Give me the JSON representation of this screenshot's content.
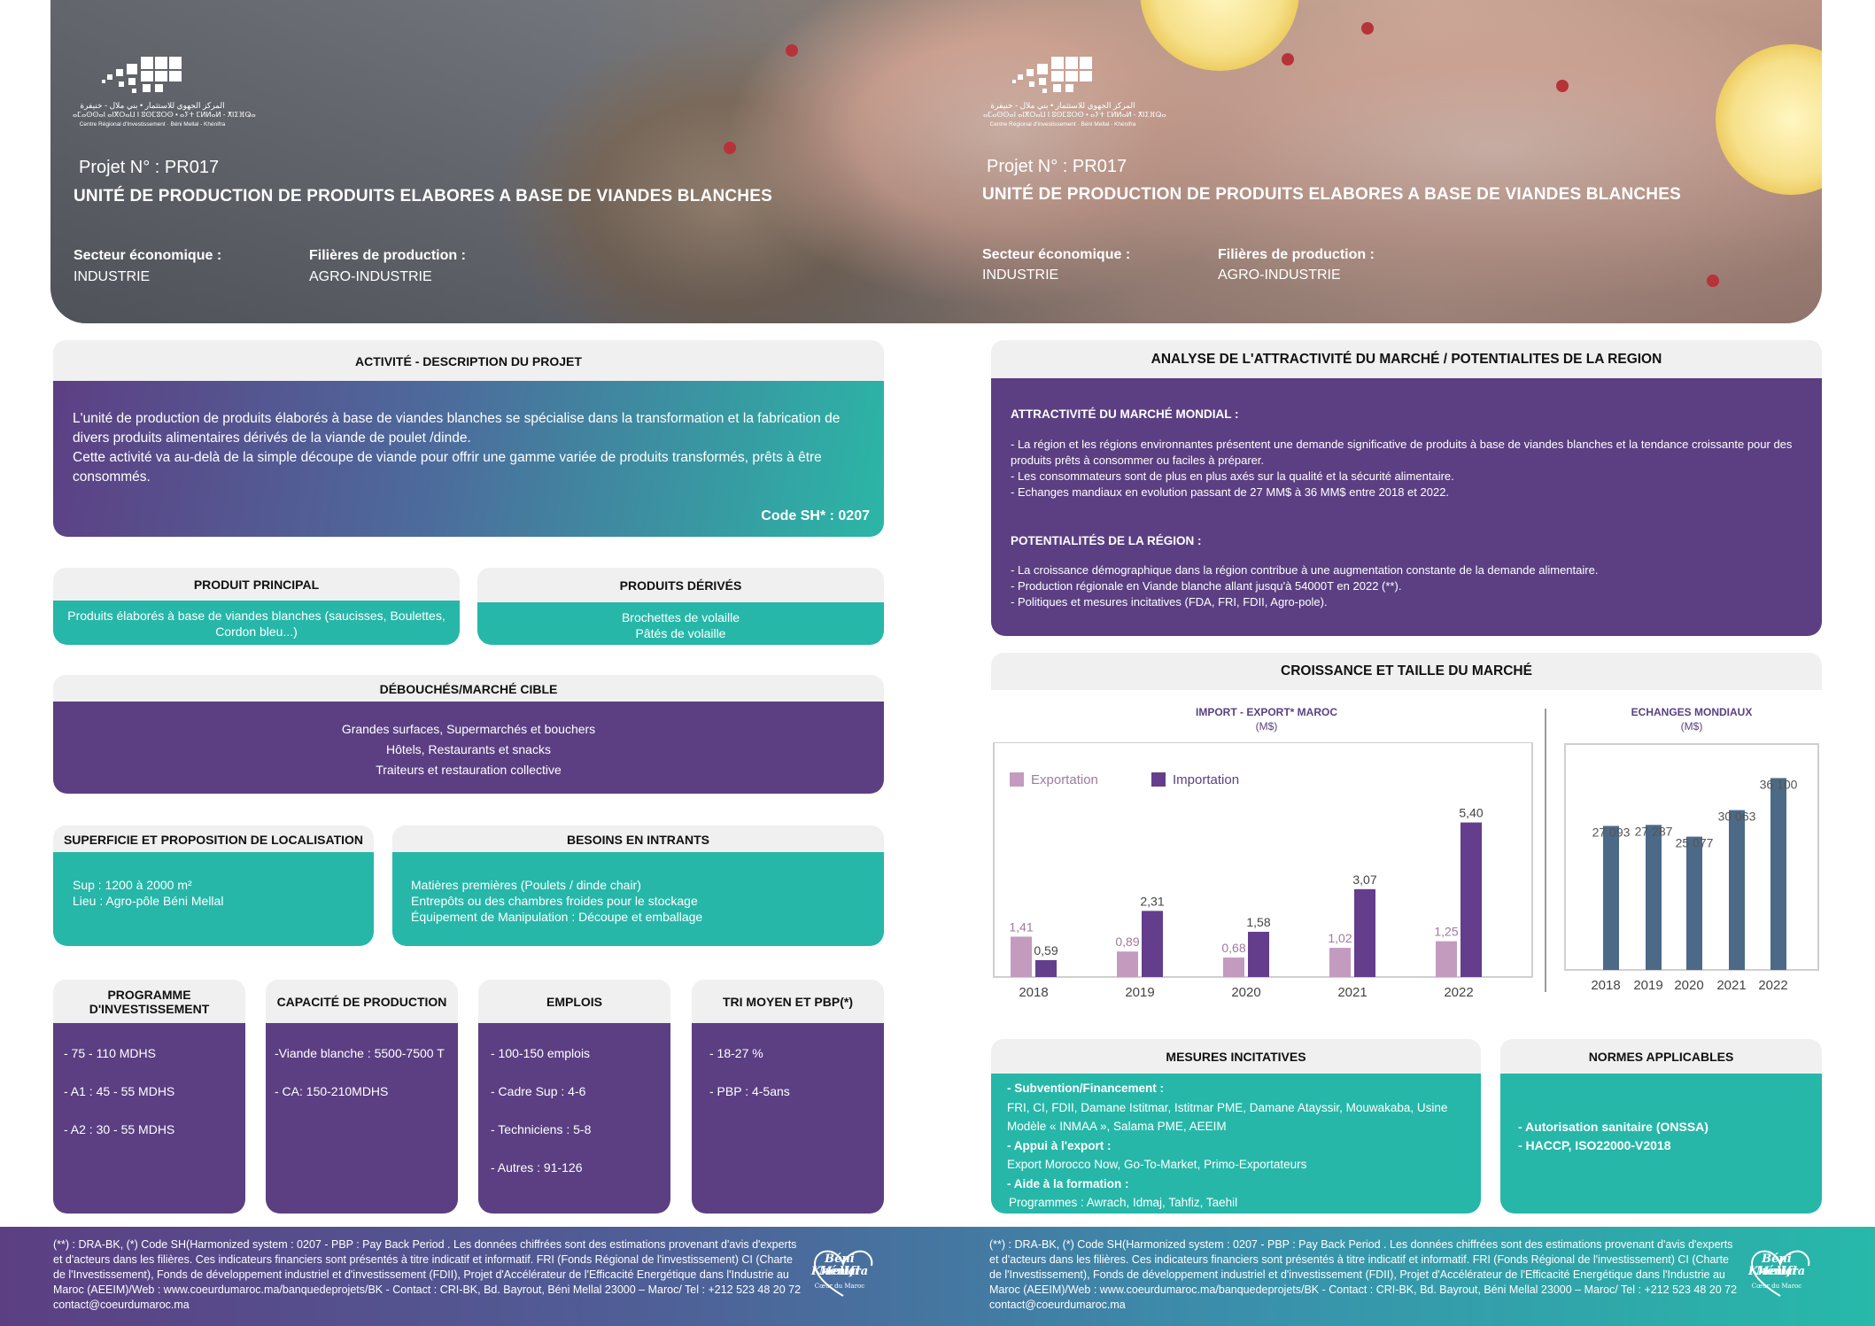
{
  "hero": {
    "logo_text_ar": "المركز الجهوي للاستثمار • بني ملال - خنيفرة",
    "logo_text_tif": "ⴰⵎⴰⵙⵙⴰⵏ ⴰⵏⴳⵔⴰⵡ ⵏ ⵓⵙⵎⵓⵔⵙ • ⴰⵢⵜ ⵎⵍⵍⴰⵍ - ⵅⵏⵉⴼⵕⴰ",
    "logo_text_fr": "Centre Régional d'Investissement · Béni Mellal - Khénifra",
    "project_no": "Projet N° :  PR017",
    "title": "UNITÉ DE PRODUCTION DE PRODUITS ELABORES A BASE DE VIANDES BLANCHES",
    "sector_label": "Secteur économique :",
    "sector_value": "INDUSTRIE",
    "filiere_label": "Filières de production :",
    "filiere_value": "AGRO-INDUSTRIE"
  },
  "activite": {
    "title": "ACTIVITÉ - DESCRIPTION DU PROJET",
    "p1": "L'unité de production de produits élaborés à base de viandes blanches se spécialise dans la transformation et la fabrication de divers produits alimentaires dérivés de la viande de poulet /dinde.",
    "p2": "Cette activité va au-delà de la simple découpe de viande pour offrir une gamme variée de produits transformés, prêts à être consommés.",
    "code": "Code SH* : 0207"
  },
  "produit_principal": {
    "title": "PRODUIT PRINCIPAL",
    "text": "Produits élaborés à base de viandes blanches (saucisses, Boulettes, Cordon bleu...)"
  },
  "produits_derives": {
    "title": "PRODUITS DÉRIVÉS",
    "items": [
      "Brochettes de volaille",
      "Pâtés de volaille"
    ]
  },
  "debouches": {
    "title": "DÉBOUCHÉS/MARCHÉ CIBLE",
    "items": [
      "Grandes surfaces, Supermarchés et bouchers",
      "Hôtels, Restaurants et snacks",
      "Traiteurs et restauration collective"
    ]
  },
  "superficie": {
    "title": "SUPERFICIE ET PROPOSITION DE LOCALISATION",
    "items": [
      "Sup : 1200 à 2000 m²",
      "Lieu : Agro-pôle Béni Mellal"
    ]
  },
  "intrants": {
    "title": "BESOINS EN INTRANTS",
    "items": [
      "Matières premières (Poulets / dinde chair)",
      "Entrepôts ou des chambres froides pour le stockage",
      "Équipement de Manipulation : Découpe et emballage"
    ]
  },
  "programme": {
    "title": "PROGRAMME D'INVESTISSEMENT",
    "items": [
      "- 75 - 110 MDHS",
      "- A1 : 45 - 55 MDHS",
      "- A2 : 30 - 55 MDHS"
    ]
  },
  "capacite": {
    "title": "CAPACITÉ DE PRODUCTION",
    "items": [
      "-Viande blanche : 5500-7500 T",
      "- CA: 150-210MDHS"
    ]
  },
  "emplois": {
    "title": "EMPLOIS",
    "items": [
      "- 100-150 emplois",
      "- Cadre Sup : 4-6",
      "- Techniciens : 5-8",
      "- Autres  : 91-126"
    ]
  },
  "tri": {
    "title": "TRI MOYEN ET PBP(*)",
    "items": [
      "- 18-27 %",
      "- PBP : 4-5ans"
    ]
  },
  "analyse": {
    "title": "ANALYSE DE L'ATTRACTIVITÉ DU MARCHÉ / POTENTIALITES DE LA REGION",
    "mondial_title": "ATTRACTIVITÉ DU MARCHÉ MONDIAL :",
    "mondial_items": [
      "- La région et les régions environnantes présentent une demande significative de produits à base de viandes blanches et la tendance croissante pour des produits prêts à consommer ou faciles à préparer.",
      "- Les consommateurs sont de plus en plus axés sur la qualité et la sécurité alimentaire.",
      "- Echanges mandiaux en evolution passant de 27 MM$ à 36 MM$ entre 2018 et 2022."
    ],
    "region_title": "POTENTIALITÉS DE LA RÉGION :",
    "region_items": [
      "- La croissance démographique dans la région contribue à une augmentation constante de la demande alimentaire.",
      "- Production régionale en Viande blanche allant jusqu'à 54000T en 2022 (**).",
      "- Politiques et mesures incitatives (FDA, FRI, FDII, Agro-pole)."
    ]
  },
  "croissance": {
    "title": "CROISSANCE ET TAILLE DU MARCHÉ",
    "left_title": "IMPORT - EXPORT* MAROC",
    "left_unit": "(M$)",
    "right_title": "ECHANGES MONDIAUX",
    "right_unit": "(M$)"
  },
  "chart_data": [
    {
      "type": "bar",
      "title": "IMPORT - EXPORT* MAROC",
      "subtitle": "(M$)",
      "categories": [
        "2018",
        "2019",
        "2020",
        "2021",
        "2022"
      ],
      "series": [
        {
          "name": "Exportation",
          "values": [
            1.41,
            0.89,
            0.68,
            1.02,
            1.25
          ],
          "labels": [
            "1,41",
            "0,89",
            "0,68",
            "1,02",
            "1,25"
          ],
          "color": "#c39bbf"
        },
        {
          "name": "Importation",
          "values": [
            0.59,
            2.31,
            1.58,
            3.07,
            5.4
          ],
          "labels": [
            "0,59",
            "2,31",
            "1,58",
            "3,07",
            "5,40"
          ],
          "color": "#643d8c"
        }
      ],
      "ylim": [
        0,
        6.5
      ],
      "legend": "top-left",
      "grid": false
    },
    {
      "type": "bar",
      "title": "ECHANGES MONDIAUX",
      "subtitle": "(M$)",
      "categories": [
        "2018",
        "2019",
        "2020",
        "2021",
        "2022"
      ],
      "series": [
        {
          "values": [
            27093,
            27287,
            25077,
            30063,
            36100
          ],
          "labels": [
            "27 093",
            "27 287",
            "25 077",
            "30 063",
            "36 100"
          ],
          "color": "#4c6a88"
        }
      ],
      "ylim": [
        0,
        38000
      ],
      "grid": false
    }
  ],
  "mesures": {
    "title": "MESURES INCITATIVES",
    "subvention_label": "- Subvention/Financement :",
    "subvention_text": "FRI, CI, FDII, Damane Istitmar, Istitmar PME, Damane Atayssir, Mouwakaba, Usine Modèle « INMAA », Salama PME, AEEIM",
    "export_label": "- Appui à l'export  :",
    "export_text": "Export Morocco Now, Go-To-Market, Primo-Exportateurs",
    "formation_label": "- Aide à la formation :",
    "formation_text": "Programmes :  Awrach, Idmaj, Tahfiz, Taehil"
  },
  "normes": {
    "title": "NORMES APPLICABLES",
    "items": [
      "- Autorisation sanitaire (ONSSA)",
      "- HACCP, ISO22000-V2018"
    ]
  },
  "footer": {
    "text": "(**) : DRA-BK, (*) Code SH(Harmonized system : 0207 - PBP : Pay Back Period . Les données chiffrées sont des estimations provenant d'avis d'experts et d'acteurs dans les filières. Ces indicateurs financiers sont présentés à titre indicatif et informatif. FRI (Fonds Régional de l'investissement) CI (Charte de l'Investissement), Fonds de développement industriel et d'investissement (FDII), Projet d'Accélérateur de l'Efficacité Energétique dans l'Industrie au Maroc (AEEIM)/Web : www.coeurdumaroc.ma/banquedeprojets/BK - Contact : CRI-BK, Bd. Bayrout, Béni Mellal 23000 – Maroc/ Tel : +212 523 48 20 72 contact@coeurdumaroc.ma",
    "brand_line1": "Béni Mellal",
    "brand_line2": "Khénifra",
    "brand_line3": "Cœur du Maroc"
  }
}
